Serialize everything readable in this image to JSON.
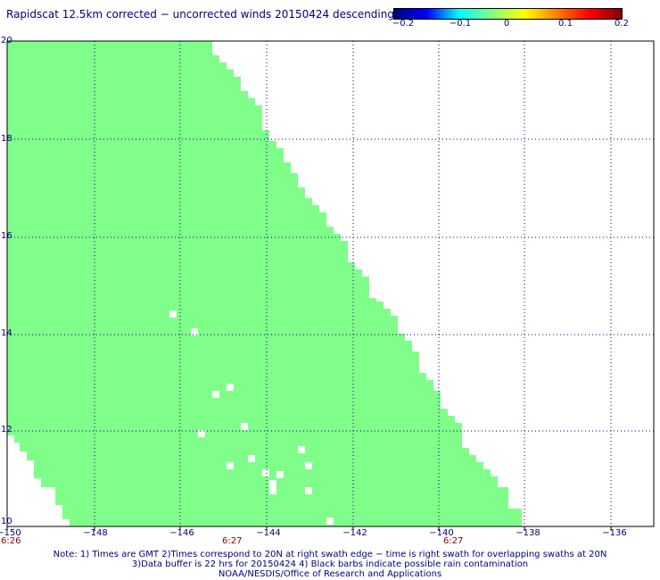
{
  "title": "Rapidscat 12.5km corrected − uncorrected winds 20150424 descending",
  "colorbar": {
    "ticks": [
      "−0.2",
      "−0.1",
      "0",
      "0.1",
      "0.2"
    ],
    "colors": [
      "#000080",
      "#0000ff",
      "#00ffff",
      "#7fff80",
      "#ffff00",
      "#ff8000",
      "#ff0000",
      "#800000"
    ]
  },
  "map": {
    "fill_color": "#7fff8a",
    "background": "#ffffff",
    "lon_range": [
      -150,
      -135
    ],
    "lat_range": [
      10,
      20
    ],
    "x_ticks": [
      "−150",
      "−148",
      "−146",
      "−144",
      "−142",
      "−140",
      "−138",
      "−136"
    ],
    "y_ticks": [
      "20",
      "18",
      "16",
      "14",
      "12",
      "10"
    ],
    "times": [
      "6:26",
      "6:27",
      "6:27"
    ]
  },
  "notes": {
    "line1": "Note: 1) Times are GMT 2)Times correspond to 20N at right swath edge − time is right swath for overlapping swaths at 20N",
    "line2": "3)Data buffer is 22 hrs for 20150424 4) Black barbs indicate possible rain contamination",
    "line3": "NOAA/NESDIS/Office of Research and Applications"
  }
}
